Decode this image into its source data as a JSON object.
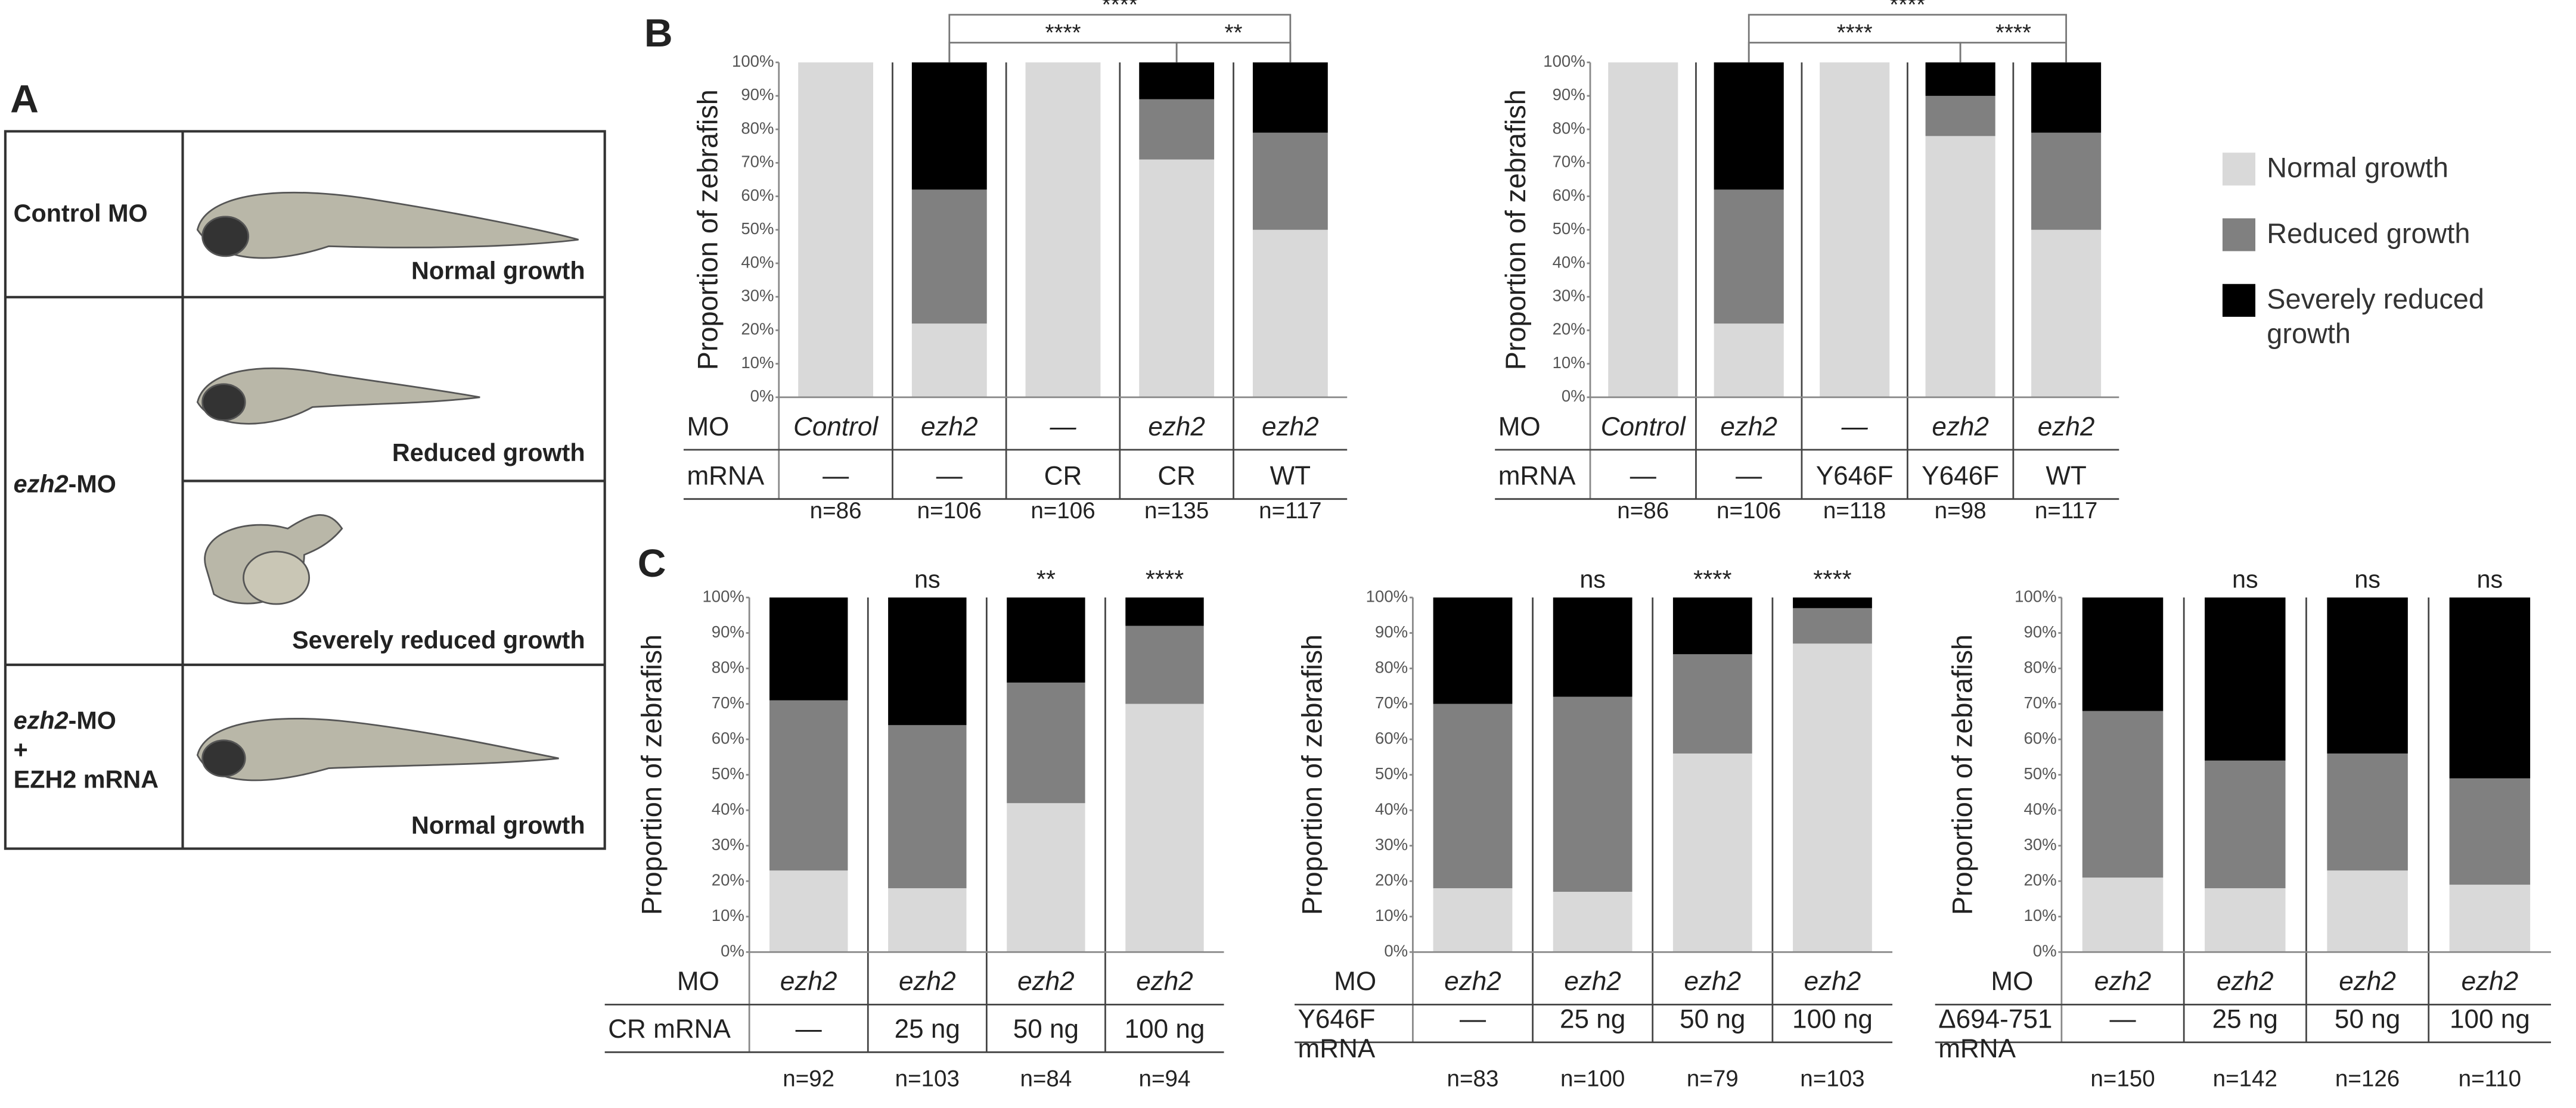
{
  "panel_a": {
    "label": "A",
    "rows": [
      {
        "name": "Control MO",
        "caption": "Normal growth"
      },
      {
        "name_italic": "ezh2",
        "name": "-MO",
        "captions": [
          "Reduced growth",
          "Severely reduced growth"
        ]
      },
      {
        "name_italic": "ezh2",
        "name": "-MO",
        "plus": "+",
        "name2": "EZH2 mRNA",
        "caption": "Normal growth"
      }
    ]
  },
  "legend": [
    {
      "name": "Normal growth",
      "color": "#d9d9d9"
    },
    {
      "name": "Reduced growth",
      "color": "#808080"
    },
    {
      "name": "Severely reduced growth",
      "color": "#000000"
    }
  ],
  "chart_data": [
    {
      "type": "stacked_bar",
      "panel": "B",
      "y_label": "Proportion of zebrafish",
      "row_labels": [
        "MO"
      ],
      "mrna_label": [
        "mRNA"
      ],
      "categories": [
        "Control",
        "ezh2",
        "—",
        "ezh2",
        "ezh2"
      ],
      "mrna": [
        "—",
        "—",
        "CR",
        "CR",
        "WT"
      ],
      "n_labels": [
        "n=86",
        "n=106",
        "n=106",
        "n=135",
        "n=117"
      ],
      "series": [
        {
          "values": [
            100,
            22,
            100,
            71,
            50
          ]
        },
        {
          "values": [
            0,
            40,
            0,
            18,
            29
          ]
        },
        {
          "values": [
            0,
            38,
            0,
            11,
            21
          ]
        }
      ],
      "ylim": [
        0,
        100
      ],
      "yticks": [
        {
          "value": 0,
          "label": "0%"
        },
        {
          "value": 10,
          "label": "10%"
        },
        {
          "value": 20,
          "label": "20%"
        },
        {
          "value": 30,
          "label": "30%"
        },
        {
          "value": 40,
          "label": "40%"
        },
        {
          "value": 50,
          "label": "50%"
        },
        {
          "value": 60,
          "label": "60%"
        },
        {
          "value": 70,
          "label": "70%"
        },
        {
          "value": 80,
          "label": "80%"
        },
        {
          "value": 90,
          "label": "90%"
        },
        {
          "value": 100,
          "label": "100%"
        }
      ],
      "brackets": [
        {
          "from": 1,
          "to": 4,
          "label": "****"
        },
        {
          "from": 1,
          "to": 3,
          "label": "****"
        },
        {
          "from": 3,
          "to": 4,
          "label": "**"
        }
      ]
    },
    {
      "type": "stacked_bar",
      "y_label": "Proportion of zebrafish",
      "row_labels": [
        "MO"
      ],
      "mrna_label": [
        "mRNA"
      ],
      "categories": [
        "Control",
        "ezh2",
        "—",
        "ezh2",
        "ezh2"
      ],
      "mrna": [
        "—",
        "—",
        "Y646F",
        "Y646F",
        "WT"
      ],
      "n_labels": [
        "n=86",
        "n=106",
        "n=118",
        "n=98",
        "n=117"
      ],
      "series": [
        {
          "values": [
            100,
            22,
            100,
            78,
            50
          ]
        },
        {
          "values": [
            0,
            40,
            0,
            12,
            29
          ]
        },
        {
          "values": [
            0,
            38,
            0,
            10,
            21
          ]
        }
      ],
      "ylim": [
        0,
        100
      ],
      "yticks": [
        {
          "value": 0,
          "label": "0%"
        },
        {
          "value": 10,
          "label": "10%"
        },
        {
          "value": 20,
          "label": "20%"
        },
        {
          "value": 30,
          "label": "30%"
        },
        {
          "value": 40,
          "label": "40%"
        },
        {
          "value": 50,
          "label": "50%"
        },
        {
          "value": 60,
          "label": "60%"
        },
        {
          "value": 70,
          "label": "70%"
        },
        {
          "value": 80,
          "label": "80%"
        },
        {
          "value": 90,
          "label": "90%"
        },
        {
          "value": 100,
          "label": "100%"
        }
      ],
      "brackets": [
        {
          "from": 1,
          "to": 4,
          "label": "****"
        },
        {
          "from": 1,
          "to": 3,
          "label": "****"
        },
        {
          "from": 3,
          "to": 4,
          "label": "****"
        }
      ]
    },
    {
      "type": "stacked_bar",
      "panel": "C",
      "y_label": "Proportion of zebrafish",
      "row_labels": [
        "MO"
      ],
      "mrna_label": [
        "CR mRNA"
      ],
      "categories": [
        "ezh2",
        "ezh2",
        "ezh2",
        "ezh2"
      ],
      "mrna": [
        "—",
        "25 ng",
        "50 ng",
        "100 ng"
      ],
      "n_labels": [
        "n=92",
        "n=103",
        "n=84",
        "n=94"
      ],
      "series": [
        {
          "values": [
            23,
            18,
            42,
            70
          ]
        },
        {
          "values": [
            48,
            46,
            34,
            22
          ]
        },
        {
          "values": [
            29,
            36,
            24,
            8
          ]
        }
      ],
      "ylim": [
        0,
        100
      ],
      "yticks": [
        {
          "value": 0,
          "label": "0%"
        },
        {
          "value": 10,
          "label": "10%"
        },
        {
          "value": 20,
          "label": "20%"
        },
        {
          "value": 30,
          "label": "30%"
        },
        {
          "value": 40,
          "label": "40%"
        },
        {
          "value": 50,
          "label": "50%"
        },
        {
          "value": 60,
          "label": "60%"
        },
        {
          "value": 70,
          "label": "70%"
        },
        {
          "value": 80,
          "label": "80%"
        },
        {
          "value": 90,
          "label": "90%"
        },
        {
          "value": 100,
          "label": "100%"
        }
      ],
      "significance": [
        null,
        "ns",
        "**",
        "****"
      ]
    },
    {
      "type": "stacked_bar",
      "y_label": "Proportion of zebrafish",
      "row_labels": [
        "MO"
      ],
      "mrna_label": [
        "Y646F",
        "mRNA"
      ],
      "categories": [
        "ezh2",
        "ezh2",
        "ezh2",
        "ezh2"
      ],
      "mrna": [
        "—",
        "25 ng",
        "50 ng",
        "100 ng"
      ],
      "n_labels": [
        "n=83",
        "n=100",
        "n=79",
        "n=103"
      ],
      "series": [
        {
          "values": [
            18,
            17,
            56,
            87
          ]
        },
        {
          "values": [
            52,
            55,
            28,
            10
          ]
        },
        {
          "values": [
            30,
            28,
            16,
            3
          ]
        }
      ],
      "ylim": [
        0,
        100
      ],
      "yticks": [
        {
          "value": 0,
          "label": "0%"
        },
        {
          "value": 10,
          "label": "10%"
        },
        {
          "value": 20,
          "label": "20%"
        },
        {
          "value": 30,
          "label": "30%"
        },
        {
          "value": 40,
          "label": "40%"
        },
        {
          "value": 50,
          "label": "50%"
        },
        {
          "value": 60,
          "label": "60%"
        },
        {
          "value": 70,
          "label": "70%"
        },
        {
          "value": 80,
          "label": "80%"
        },
        {
          "value": 90,
          "label": "90%"
        },
        {
          "value": 100,
          "label": "100%"
        }
      ],
      "significance": [
        null,
        "ns",
        "****",
        "****"
      ]
    },
    {
      "type": "stacked_bar",
      "y_label": "Proportion of zebrafish",
      "row_labels": [
        "MO"
      ],
      "mrna_label": [
        "Δ694-751",
        "mRNA"
      ],
      "categories": [
        "ezh2",
        "ezh2",
        "ezh2",
        "ezh2"
      ],
      "mrna": [
        "—",
        "25 ng",
        "50 ng",
        "100 ng"
      ],
      "n_labels": [
        "n=150",
        "n=142",
        "n=126",
        "n=110"
      ],
      "series": [
        {
          "values": [
            21,
            18,
            23,
            19
          ]
        },
        {
          "values": [
            47,
            36,
            33,
            30
          ]
        },
        {
          "values": [
            32,
            46,
            44,
            51
          ]
        }
      ],
      "ylim": [
        0,
        100
      ],
      "yticks": [
        {
          "value": 0,
          "label": "0%"
        },
        {
          "value": 10,
          "label": "10%"
        },
        {
          "value": 20,
          "label": "20%"
        },
        {
          "value": 30,
          "label": "30%"
        },
        {
          "value": 40,
          "label": "40%"
        },
        {
          "value": 50,
          "label": "50%"
        },
        {
          "value": 60,
          "label": "60%"
        },
        {
          "value": 70,
          "label": "70%"
        },
        {
          "value": 80,
          "label": "80%"
        },
        {
          "value": 90,
          "label": "90%"
        },
        {
          "value": 100,
          "label": "100%"
        }
      ],
      "significance": [
        null,
        "ns",
        "ns",
        "ns"
      ]
    }
  ]
}
